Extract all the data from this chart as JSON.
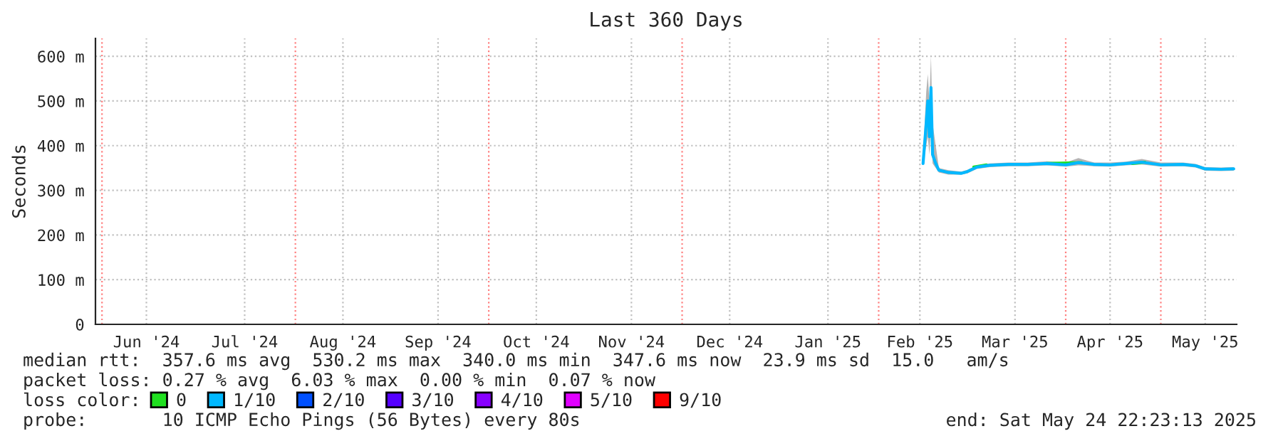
{
  "chart_data": {
    "type": "line",
    "title": "Last 360 Days",
    "ylabel": "Seconds",
    "xlim": [
      "2024-05-29T22:23",
      "2025-05-24T22:23"
    ],
    "ylim": [
      0,
      640
    ],
    "xticks": [
      {
        "value": "2024-06-15",
        "label": "Jun '24"
      },
      {
        "value": "2024-07-16",
        "label": "Jul '24"
      },
      {
        "value": "2024-08-16",
        "label": "Aug '24"
      },
      {
        "value": "2024-09-15",
        "label": "Sep '24"
      },
      {
        "value": "2024-10-16",
        "label": "Oct '24"
      },
      {
        "value": "2024-11-15",
        "label": "Nov '24"
      },
      {
        "value": "2024-12-16",
        "label": "Dec '24"
      },
      {
        "value": "2025-01-16",
        "label": "Jan '25"
      },
      {
        "value": "2025-02-14",
        "label": "Feb '25"
      },
      {
        "value": "2025-03-16",
        "label": "Mar '25"
      },
      {
        "value": "2025-04-15",
        "label": "Apr '25"
      },
      {
        "value": "2025-05-15",
        "label": "May '25"
      }
    ],
    "yticks": [
      0,
      {
        "value": 100,
        "label": "100 m"
      },
      {
        "value": 200,
        "label": "200 m"
      },
      {
        "value": 300,
        "label": "300 m"
      },
      {
        "value": 400,
        "label": "400 m"
      },
      {
        "value": 500,
        "label": "500 m"
      },
      {
        "value": 600,
        "label": "600 m"
      }
    ],
    "grid": true,
    "legend": "bottom left",
    "ref_lines": [
      {
        "axis": "x",
        "value": "2024-06-01",
        "color": "#ff8080",
        "line_style": "dotted"
      },
      {
        "axis": "x",
        "value": "2024-08-01",
        "color": "#ff8080",
        "line_style": "dotted"
      },
      {
        "axis": "x",
        "value": "2024-10-01",
        "color": "#ff8080",
        "line_style": "dotted"
      },
      {
        "axis": "x",
        "value": "2024-12-01",
        "color": "#ff8080",
        "line_style": "dotted"
      },
      {
        "axis": "x",
        "value": "2025-02-01",
        "color": "#ff8080",
        "line_style": "dotted"
      },
      {
        "axis": "x",
        "value": "2025-04-01",
        "color": "#ff8080",
        "line_style": "dotted"
      },
      {
        "axis": "x",
        "value": "2025-05-01",
        "color": "#ff8080",
        "line_style": "dotted"
      }
    ],
    "series": [
      {
        "name": "0",
        "color": "#20e020",
        "x": [
          "2025-03-03",
          "2025-03-07",
          "2025-03-20",
          "2025-03-26",
          "2025-04-06",
          "2025-04-14",
          "2025-04-22",
          "2025-04-26"
        ],
        "values": [
          352,
          357,
          null,
          360,
          362,
          null,
          360,
          363
        ]
      },
      {
        "name": "1/10",
        "color": "#00b8ff",
        "x": [
          "2025-02-15",
          "2025-02-16",
          "2025-02-16T12:00",
          "2025-02-17",
          "2025-02-17T12:00",
          "2025-02-18",
          "2025-02-19",
          "2025-02-20",
          "2025-02-23",
          "2025-02-27",
          "2025-03-01",
          "2025-03-04",
          "2025-03-08",
          "2025-03-14",
          "2025-03-20",
          "2025-03-26",
          "2025-04-01",
          "2025-04-05",
          "2025-04-10",
          "2025-04-15",
          "2025-04-20",
          "2025-04-25",
          "2025-05-01",
          "2025-05-08",
          "2025-05-12",
          "2025-05-15",
          "2025-05-20",
          "2025-05-24"
        ],
        "values": [
          360,
          450,
          500,
          420,
          530,
          380,
          360,
          345,
          340,
          338,
          342,
          352,
          356,
          358,
          358,
          360,
          357,
          362,
          358,
          357,
          360,
          363,
          357,
          358,
          355,
          348,
          347,
          348
        ],
        "lower": [
          360,
          400,
          420,
          380,
          440,
          360,
          350,
          340,
          335,
          335,
          338,
          348,
          352,
          354,
          354,
          356,
          353,
          356,
          354,
          353,
          356,
          358,
          353,
          354,
          351,
          344,
          343,
          344
        ],
        "upper": [
          380,
          520,
          560,
          500,
          600,
          450,
          400,
          350,
          345,
          342,
          346,
          356,
          360,
          362,
          362,
          365,
          362,
          372,
          362,
          362,
          364,
          370,
          362,
          362,
          359,
          352,
          351,
          352
        ]
      },
      {
        "name": "2/10",
        "color": "#0050ff"
      },
      {
        "name": "3/10",
        "color": "#5500ff"
      },
      {
        "name": "4/10",
        "color": "#8800ff"
      },
      {
        "name": "5/10",
        "color": "#e000ff"
      },
      {
        "name": "9/10",
        "color": "#ff0000"
      }
    ],
    "annotations": [
      "median rtt:  357.6 ms avg  530.2 ms max  340.0 ms min  347.6 ms now  23.9 ms sd  15.0   am/s",
      "packet loss: 0.27 % avg  6.03 % max  0.00 % min  0.07 % now",
      "loss color:",
      "probe:       10 ICMP Echo Pings (56 Bytes) every 80s",
      "end: Sat May 24 22:23:13 2025"
    ]
  }
}
